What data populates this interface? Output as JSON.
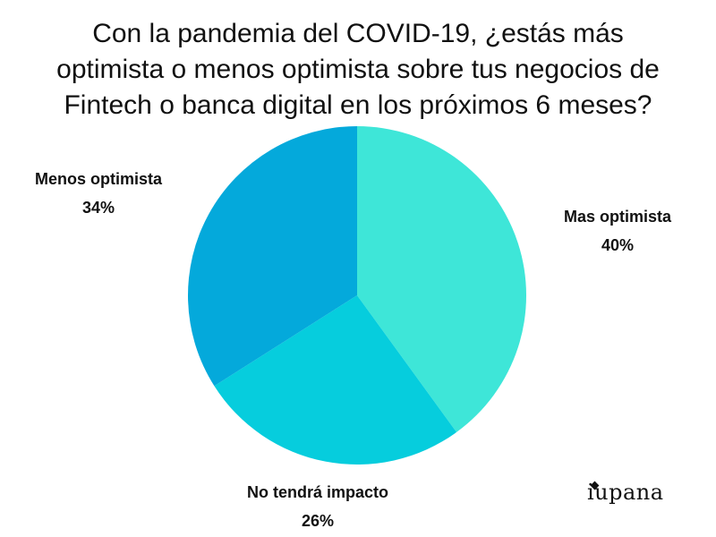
{
  "title_lines": [
    "Con la pandemia del COVID-19, ¿estás más",
    "optimista o menos optimista sobre tus negocios de",
    "Fintech o banca digital en los próximos 6 meses?"
  ],
  "brand": "iupana",
  "colors": {
    "mas_optimista": "#3ee6d8",
    "no_tendra_impacto": "#06cddd",
    "menos_optimista": "#04a9db"
  },
  "chart_data": {
    "type": "pie",
    "title": "Con la pandemia del COVID-19, ¿estás más optimista o menos optimista sobre tus negocios de Fintech o banca digital en los próximos 6 meses?",
    "categories": [
      "Mas optimista",
      "No tendrá impacto",
      "Menos optimista"
    ],
    "values": [
      40,
      26,
      34
    ],
    "value_labels": [
      "40%",
      "26%",
      "34%"
    ],
    "legend": "none"
  }
}
